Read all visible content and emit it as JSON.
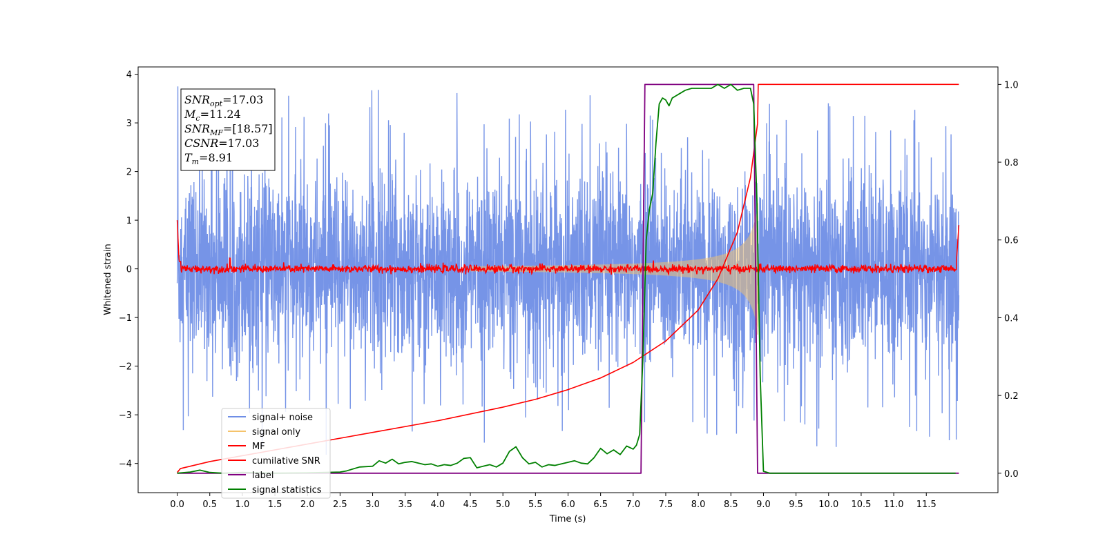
{
  "chart_data": {
    "type": "line",
    "title": "",
    "xlabel": "Time (s)",
    "ylabel": "Whitened strain",
    "xlim": [
      -0.6,
      12.6
    ],
    "ylim_left": [
      -4.6,
      4.15
    ],
    "ylim_right": [
      -0.05,
      1.045
    ],
    "x_ticks": [
      0.0,
      0.5,
      1.0,
      1.5,
      2.0,
      2.5,
      3.0,
      3.5,
      4.0,
      4.5,
      5.0,
      5.5,
      6.0,
      6.5,
      7.0,
      7.5,
      8.0,
      8.5,
      9.0,
      9.5,
      10.0,
      10.5,
      11.0,
      11.5
    ],
    "x_tick_labels": [
      "0.0",
      "0.5",
      "1.0",
      "1.5",
      "2.0",
      "2.5",
      "3.0",
      "3.5",
      "4.0",
      "4.5",
      "5.0",
      "5.5",
      "6.0",
      "6.5",
      "7.0",
      "7.5",
      "8.0",
      "8.5",
      "9.0",
      "9.5",
      "10.0",
      "10.5",
      "11.0",
      "11.5"
    ],
    "y_left_ticks": [
      -4,
      -3,
      -2,
      -1,
      0,
      1,
      2,
      3,
      4
    ],
    "y_left_tick_labels": [
      "−4",
      "−3",
      "−2",
      "−1",
      "0",
      "1",
      "2",
      "3",
      "4"
    ],
    "y_right_ticks": [
      0.0,
      0.2,
      0.4,
      0.6,
      0.8,
      1.0
    ],
    "y_right_tick_labels": [
      "0.0",
      "0.2",
      "0.4",
      "0.6",
      "0.8",
      "1.0"
    ],
    "legend_position": "lower-left",
    "grid": false,
    "annotation_box": {
      "lines": [
        {
          "var": "SNR",
          "sub": "opt",
          "value": "=17.03"
        },
        {
          "var": "M",
          "sub": "c",
          "value": "=11.24"
        },
        {
          "var": "SNR",
          "sub": "MF",
          "value": "=[18.57]"
        },
        {
          "var": "CSNR",
          "sub": "",
          "value": "=17.03"
        },
        {
          "var": "T",
          "sub": "m",
          "value": "=8.91"
        }
      ]
    },
    "series": [
      {
        "name": "signal+ noise",
        "axis": "left",
        "color": "#6f8ee6",
        "description_x_range": [
          0.0,
          12.0
        ],
        "noise_envelope": {
          "typical_peak": 2.2,
          "max_peak": 3.75,
          "min_peak": -4.15
        }
      },
      {
        "name": "signal only",
        "axis": "left",
        "color": "#f5c36b",
        "chirp": {
          "start": 4.5,
          "end": 8.91,
          "peak_amplitude": 1.35
        }
      },
      {
        "name": "MF",
        "axis": "left",
        "color": "#ff0000",
        "x": [
          0.0,
          0.02,
          0.05,
          0.1,
          0.8,
          0.81,
          1.0,
          6.0,
          11.95,
          11.98,
          12.0
        ],
        "y": [
          1.0,
          0.2,
          0.0,
          0.0,
          0.0,
          0.22,
          0.0,
          0.0,
          0.0,
          0.4,
          0.9
        ]
      },
      {
        "name": "cumilative SNR",
        "axis": "right",
        "color": "#ff0000",
        "x": [
          0.0,
          0.05,
          0.5,
          1.0,
          2.0,
          3.0,
          4.0,
          5.0,
          5.5,
          6.0,
          6.5,
          7.0,
          7.5,
          8.0,
          8.3,
          8.6,
          8.8,
          8.91,
          8.92,
          9.0,
          12.0
        ],
        "y": [
          0.002,
          0.012,
          0.03,
          0.045,
          0.075,
          0.105,
          0.135,
          0.17,
          0.19,
          0.215,
          0.245,
          0.285,
          0.34,
          0.42,
          0.5,
          0.62,
          0.76,
          0.9,
          1.0,
          1.0,
          1.0
        ]
      },
      {
        "name": "label",
        "axis": "right",
        "color": "#800080",
        "x": [
          0.0,
          7.12,
          7.18,
          8.85,
          8.91,
          12.0
        ],
        "y": [
          0.0,
          0.0,
          1.0,
          1.0,
          0.0,
          0.0
        ]
      },
      {
        "name": "signal statistics",
        "axis": "right",
        "color": "#008000",
        "x": [
          0.0,
          0.2,
          0.35,
          0.5,
          0.7,
          1.0,
          1.5,
          2.0,
          2.5,
          2.6,
          2.8,
          3.0,
          3.1,
          3.2,
          3.3,
          3.4,
          3.5,
          3.6,
          3.7,
          3.8,
          3.9,
          4.0,
          4.1,
          4.2,
          4.3,
          4.4,
          4.5,
          4.6,
          4.7,
          4.8,
          4.9,
          5.0,
          5.1,
          5.2,
          5.3,
          5.4,
          5.5,
          5.6,
          5.7,
          5.8,
          5.9,
          6.0,
          6.1,
          6.2,
          6.3,
          6.4,
          6.5,
          6.6,
          6.7,
          6.8,
          6.9,
          7.0,
          7.05,
          7.1,
          7.15,
          7.2,
          7.25,
          7.3,
          7.35,
          7.4,
          7.45,
          7.5,
          7.55,
          7.6,
          7.65,
          7.7,
          7.8,
          7.9,
          8.0,
          8.1,
          8.2,
          8.3,
          8.4,
          8.5,
          8.6,
          8.7,
          8.8,
          8.85,
          8.9,
          8.95,
          9.0,
          9.1,
          9.5,
          10.0,
          11.0,
          11.95
        ],
        "y": [
          0.0,
          0.003,
          0.008,
          0.002,
          0.0,
          0.002,
          0.0,
          0.001,
          0.003,
          0.006,
          0.016,
          0.018,
          0.032,
          0.026,
          0.036,
          0.024,
          0.028,
          0.03,
          0.026,
          0.022,
          0.024,
          0.018,
          0.022,
          0.02,
          0.026,
          0.038,
          0.04,
          0.014,
          0.018,
          0.022,
          0.016,
          0.026,
          0.056,
          0.068,
          0.04,
          0.024,
          0.028,
          0.016,
          0.022,
          0.02,
          0.024,
          0.028,
          0.032,
          0.026,
          0.024,
          0.04,
          0.064,
          0.05,
          0.06,
          0.048,
          0.07,
          0.062,
          0.072,
          0.1,
          0.3,
          0.6,
          0.68,
          0.72,
          0.85,
          0.95,
          0.965,
          0.96,
          0.945,
          0.965,
          0.97,
          0.975,
          0.985,
          0.99,
          0.99,
          0.99,
          0.99,
          1.0,
          0.99,
          1.0,
          0.985,
          0.99,
          0.99,
          0.95,
          0.7,
          0.25,
          0.005,
          0.0,
          0.0,
          0.0,
          0.0,
          0.0
        ]
      }
    ]
  }
}
